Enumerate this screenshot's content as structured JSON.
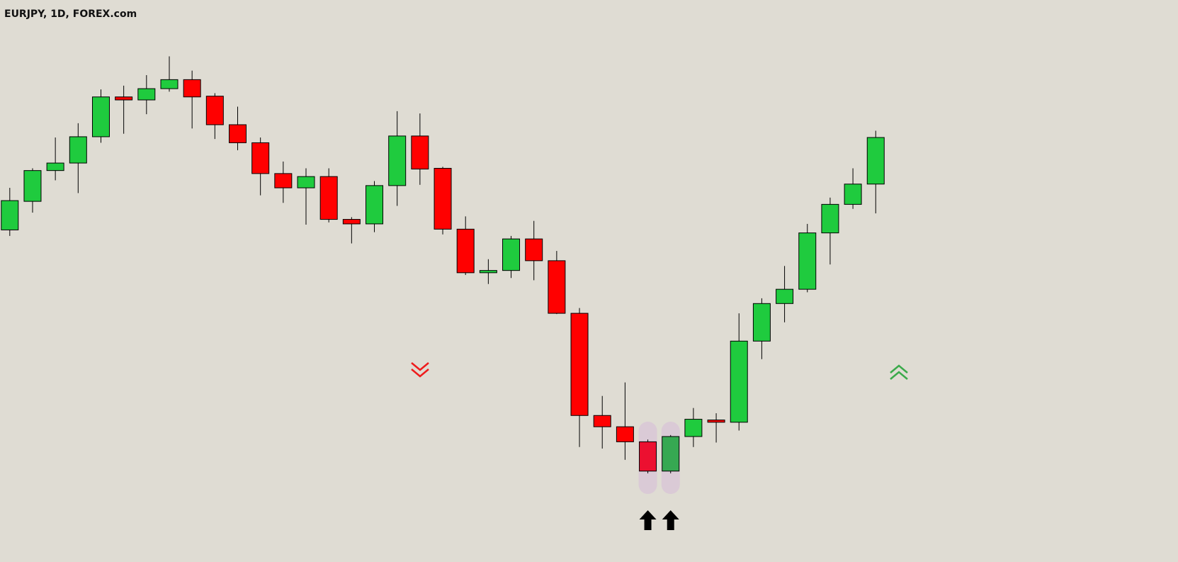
{
  "chart_data": {
    "type": "candlestick",
    "title": "EURJPY, 1D, FOREX.com",
    "open": [
      442,
      480,
      521,
      531,
      566,
      619,
      615,
      630,
      642,
      620,
      582,
      558,
      517,
      498,
      513,
      456,
      450,
      501,
      567,
      524,
      443,
      385,
      388,
      430,
      401,
      331,
      195,
      180,
      160,
      121,
      167,
      189,
      186,
      294,
      344,
      363,
      438,
      476,
      503
    ],
    "high": [
      498,
      524,
      565,
      584,
      629,
      634,
      648,
      673,
      654,
      624,
      606,
      565,
      533,
      524,
      524,
      459,
      507,
      600,
      597,
      526,
      460,
      403,
      434,
      454,
      414,
      338,
      221,
      239,
      163,
      169,
      205,
      198,
      331,
      351,
      394,
      450,
      485,
      524,
      574
    ],
    "low": [
      434,
      465,
      508,
      491,
      558,
      570,
      596,
      626,
      577,
      563,
      548,
      488,
      478,
      449,
      452,
      424,
      439,
      474,
      502,
      436,
      382,
      370,
      378,
      375,
      330,
      153,
      151,
      136,
      118,
      118,
      153,
      159,
      175,
      270,
      319,
      359,
      396,
      470,
      464
    ],
    "close": [
      481,
      521,
      531,
      566,
      619,
      615,
      630,
      642,
      619,
      582,
      558,
      517,
      498,
      513,
      456,
      450,
      501,
      567,
      523,
      443,
      385,
      388,
      430,
      401,
      331,
      195,
      180,
      160,
      121,
      167,
      190,
      186,
      294,
      344,
      363,
      438,
      476,
      503,
      565
    ],
    "ylim": [
      0,
      748
    ],
    "up_color": "#1fcb3e",
    "down_color": "#ff0000",
    "highlight": {
      "indices": [
        28,
        29
      ],
      "up_color": "#36a852",
      "down_color": "#ec1030",
      "band_color": "#d9c8d6"
    }
  }
}
